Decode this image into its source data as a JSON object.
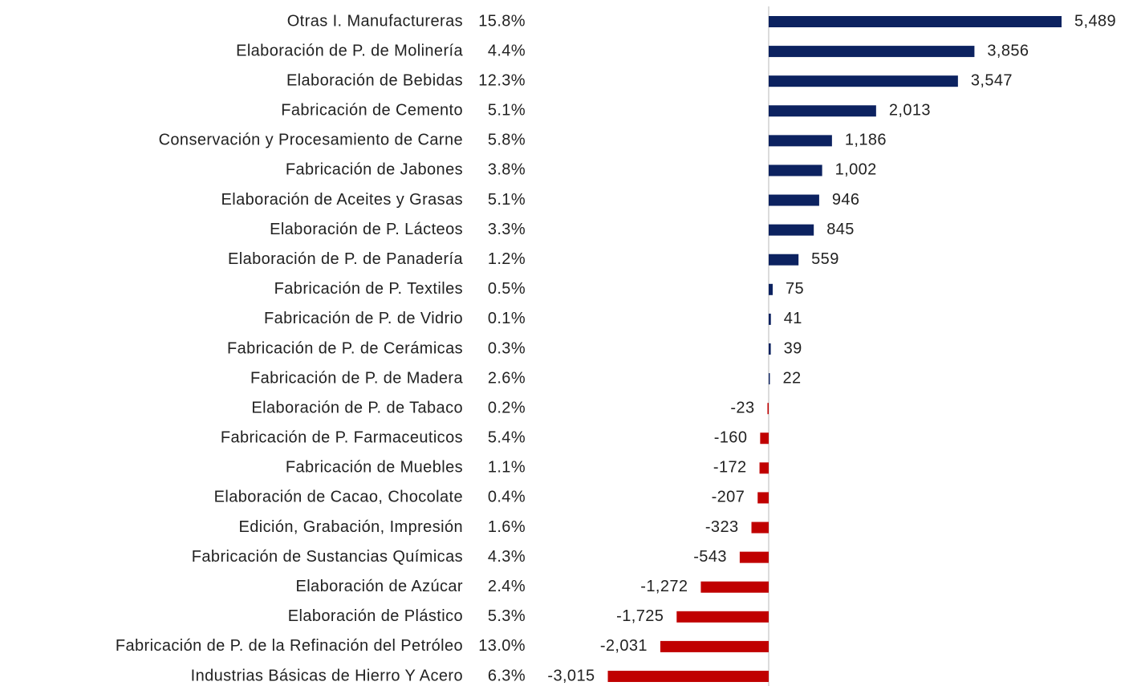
{
  "chart_data": {
    "type": "diverging-bar",
    "categories": [
      "Otras I. Manufactureras",
      "Elaboración de P. de Molinería",
      "Elaboración de Bebidas",
      "Fabricación de Cemento",
      "Conservación y Procesamiento de Carne",
      "Fabricación de Jabones",
      "Elaboración de Aceites y Grasas",
      "Elaboración de P. Lácteos",
      "Elaboración de P. de Panadería",
      "Fabricación de P. Textiles",
      "Fabricación de P. de Vidrio",
      "Fabricación de P. de Cerámicas",
      "Fabricación de P. de Madera",
      "Elaboración de P. de Tabaco",
      "Fabricación de P. Farmaceuticos",
      "Fabricación de Muebles",
      "Elaboración de Cacao, Chocolate",
      "Edición, Grabación, Impresión",
      "Fabricación de Sustancias Químicas",
      "Elaboración de Azúcar",
      "Elaboración de Plástico",
      "Fabricación de P. de la Refinación del Petróleo",
      "Industrias Básicas de Hierro Y Acero"
    ],
    "shares": [
      "15.8%",
      "4.4%",
      "12.3%",
      "5.1%",
      "5.8%",
      "3.8%",
      "5.1%",
      "3.3%",
      "1.2%",
      "0.5%",
      "0.1%",
      "0.3%",
      "2.6%",
      "0.2%",
      "5.4%",
      "1.1%",
      "0.4%",
      "1.6%",
      "4.3%",
      "2.4%",
      "5.3%",
      "13.0%",
      "6.3%"
    ],
    "values": [
      5489,
      3856,
      3547,
      2013,
      1186,
      1002,
      946,
      845,
      559,
      75,
      41,
      39,
      22,
      -23,
      -160,
      -172,
      -207,
      -323,
      -543,
      -1272,
      -1725,
      -2031,
      -3015
    ],
    "value_labels": [
      "5,489",
      "3,856",
      "3,547",
      "2,013",
      "1,186",
      "1,002",
      "946",
      "845",
      "559",
      "75",
      "41",
      "39",
      "22",
      "-23",
      "-160",
      "-172",
      "-207",
      "-323",
      "-543",
      "-1,272",
      "-1,725",
      "-2,031",
      "-3,015"
    ],
    "positive_color": "#0c2260",
    "negative_color": "#c00000"
  }
}
